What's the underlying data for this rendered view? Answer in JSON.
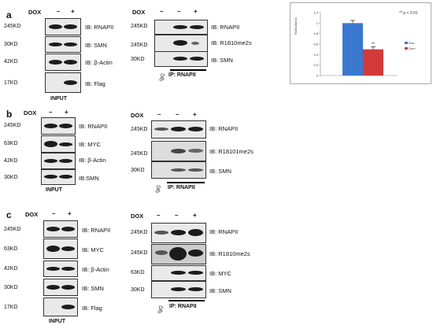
{
  "panels": {
    "a": {
      "label": "a",
      "input": {
        "dox": "DOX",
        "signs": [
          "–",
          "+"
        ],
        "rows": [
          {
            "mw": "245KD",
            "ib": "IB: RNAPII"
          },
          {
            "mw": "30KD",
            "ib": "IB: SMN"
          },
          {
            "mw": "42KD",
            "ib": "IB: β-Actin"
          },
          {
            "mw": "17KD",
            "ib": "IB: Flag"
          }
        ],
        "caption": "INPUT"
      },
      "ip": {
        "dox": "DOX",
        "signs": [
          "–",
          "–",
          "+"
        ],
        "rows": [
          {
            "mw": "245KD",
            "ib": "IB: RNAPII"
          },
          {
            "mw": "245KD",
            "ib": "IB: R1810me2s"
          },
          {
            "mw": "30KD",
            "ib": "IB: SMN"
          }
        ],
        "igg": "IgG",
        "caption": "IP: RNAPII"
      }
    },
    "b": {
      "label": "b",
      "input": {
        "dox": "DOX",
        "signs": [
          "–",
          "+"
        ],
        "rows": [
          {
            "mw": "245KD",
            "ib": "IB: RNAPII"
          },
          {
            "mw": "63KD",
            "ib": "IB: MYC"
          },
          {
            "mw": "42KD",
            "ib": "IB:  β-Actin"
          },
          {
            "mw": "30KD",
            "ib": "IB:SMN"
          }
        ],
        "caption": "INPUT"
      },
      "ip": {
        "dox": "DOX",
        "signs": [
          "–",
          "–",
          "+"
        ],
        "rows": [
          {
            "mw": "245KD",
            "ib": "IB: RNAPII"
          },
          {
            "mw": "245KD",
            "ib": "IB: R18101me2s"
          },
          {
            "mw": "30KD",
            "ib": "IB: SMN"
          }
        ],
        "igg": "IgG",
        "caption": "IP: RNAPII"
      }
    },
    "c": {
      "label": "c",
      "input": {
        "dox": "DOX",
        "signs": [
          "–",
          "+"
        ],
        "rows": [
          {
            "mw": "245KD",
            "ib": "IB: RNAPII"
          },
          {
            "mw": "63KD",
            "ib": "IB: MYC"
          },
          {
            "mw": "42KD",
            "ib": "IB:  β-Actin"
          },
          {
            "mw": "30KD",
            "ib": "IB: SMN"
          },
          {
            "mw": "17KD",
            "ib": "IB: Flag"
          }
        ],
        "caption": "INPUT"
      },
      "ip": {
        "dox": "DOX",
        "signs": [
          "–",
          "–",
          "+"
        ],
        "rows": [
          {
            "mw": "245KD",
            "ib": "IB: RNAPII"
          },
          {
            "mw": "245KD",
            "ib": "IB: R1810me2s"
          },
          {
            "mw": "63KD",
            "ib": "IB: MYC"
          },
          {
            "mw": "30KD",
            "ib": "IB: SMN"
          }
        ],
        "igg": "IgG",
        "caption": "IP: RNAPII"
      }
    }
  },
  "chart_data": {
    "type": "bar",
    "categories": [
      "Dox-",
      "Dox+"
    ],
    "values": [
      1.0,
      0.5
    ],
    "errors": [
      0.05,
      0.05
    ],
    "colors": [
      "#3a78d0",
      "#d23a3a"
    ],
    "ylabel": "R1810me2s",
    "ylim": [
      0,
      1.2
    ],
    "yticks": [
      0,
      0.2,
      0.4,
      0.6,
      0.8,
      1,
      1.2
    ],
    "legend": [
      "Dox-",
      "Dox+"
    ],
    "legend_position": "right",
    "annotation": "**",
    "significance": "** p < 0.01"
  }
}
